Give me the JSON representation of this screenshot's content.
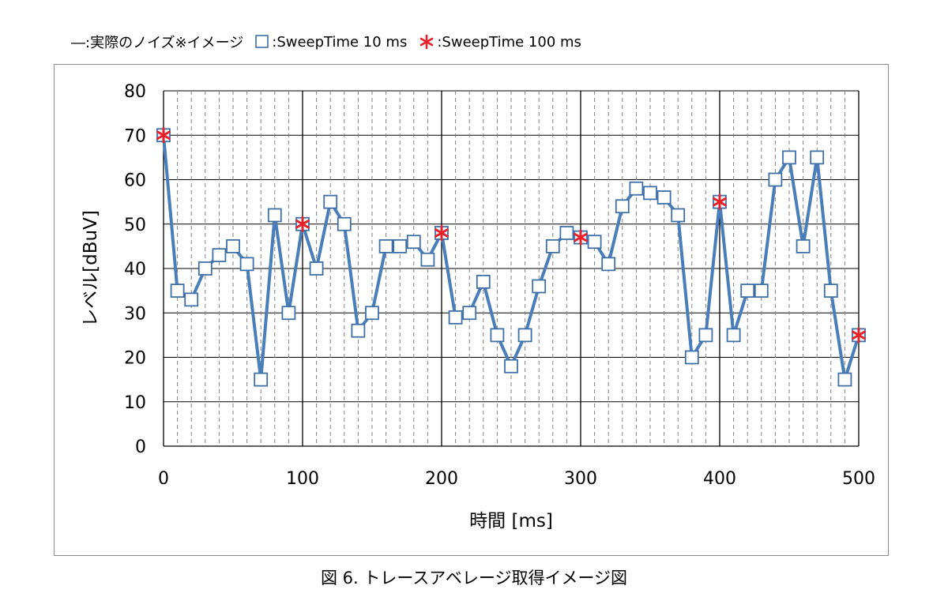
{
  "legend": {
    "items": [
      {
        "marker": "line",
        "label": "―:実際のノイズ※イメージ"
      },
      {
        "marker": "square",
        "label": ":SweepTime 10 ms"
      },
      {
        "marker": "asterisk",
        "label": ":SweepTime 100 ms"
      }
    ]
  },
  "colors": {
    "series_line": "#4a7ebb",
    "marker_edge": "#3e6fa8",
    "marker_fill": "#ffffff",
    "sweep100_marker": "#e8212a",
    "grid_dashed": "#808080",
    "grid_major": "#000000"
  },
  "chart_data": {
    "type": "line",
    "xlabel": "時間 [ms]",
    "ylabel": "レベル[dBuV]",
    "xlim": [
      0,
      500
    ],
    "ylim": [
      0,
      80
    ],
    "x_ticks": [
      0,
      100,
      200,
      300,
      400,
      500
    ],
    "y_ticks": [
      0,
      10,
      20,
      30,
      40,
      50,
      60,
      70,
      80
    ],
    "grid": {
      "x_minor_step": 10,
      "x_major_step": 100,
      "y_step": 10
    },
    "series": [
      {
        "name": "実際のノイズ※イメージ",
        "marker": "square",
        "x": [
          0,
          10,
          20,
          30,
          40,
          50,
          60,
          70,
          80,
          90,
          100,
          110,
          120,
          130,
          140,
          150,
          160,
          170,
          180,
          190,
          200,
          210,
          220,
          230,
          240,
          250,
          260,
          270,
          280,
          290,
          300,
          310,
          320,
          330,
          340,
          350,
          360,
          370,
          380,
          390,
          400,
          410,
          420,
          430,
          440,
          450,
          460,
          470,
          480,
          490,
          500
        ],
        "values": [
          70,
          35,
          33,
          40,
          43,
          45,
          41,
          15,
          52,
          30,
          50,
          40,
          55,
          50,
          26,
          30,
          45,
          45,
          46,
          42,
          48,
          29,
          30,
          37,
          25,
          18,
          25,
          36,
          45,
          48,
          47,
          46,
          41,
          54,
          58,
          57,
          56,
          52,
          20,
          25,
          55,
          25,
          35,
          35,
          60,
          65,
          45,
          65,
          35,
          15,
          25
        ]
      },
      {
        "name": "SweepTime 100 ms",
        "marker": "asterisk",
        "x": [
          0,
          100,
          200,
          300,
          400,
          500
        ],
        "values": [
          70,
          50,
          48,
          47,
          55,
          25
        ]
      }
    ]
  },
  "caption": "図 6. トレースアベレージ取得イメージ図"
}
